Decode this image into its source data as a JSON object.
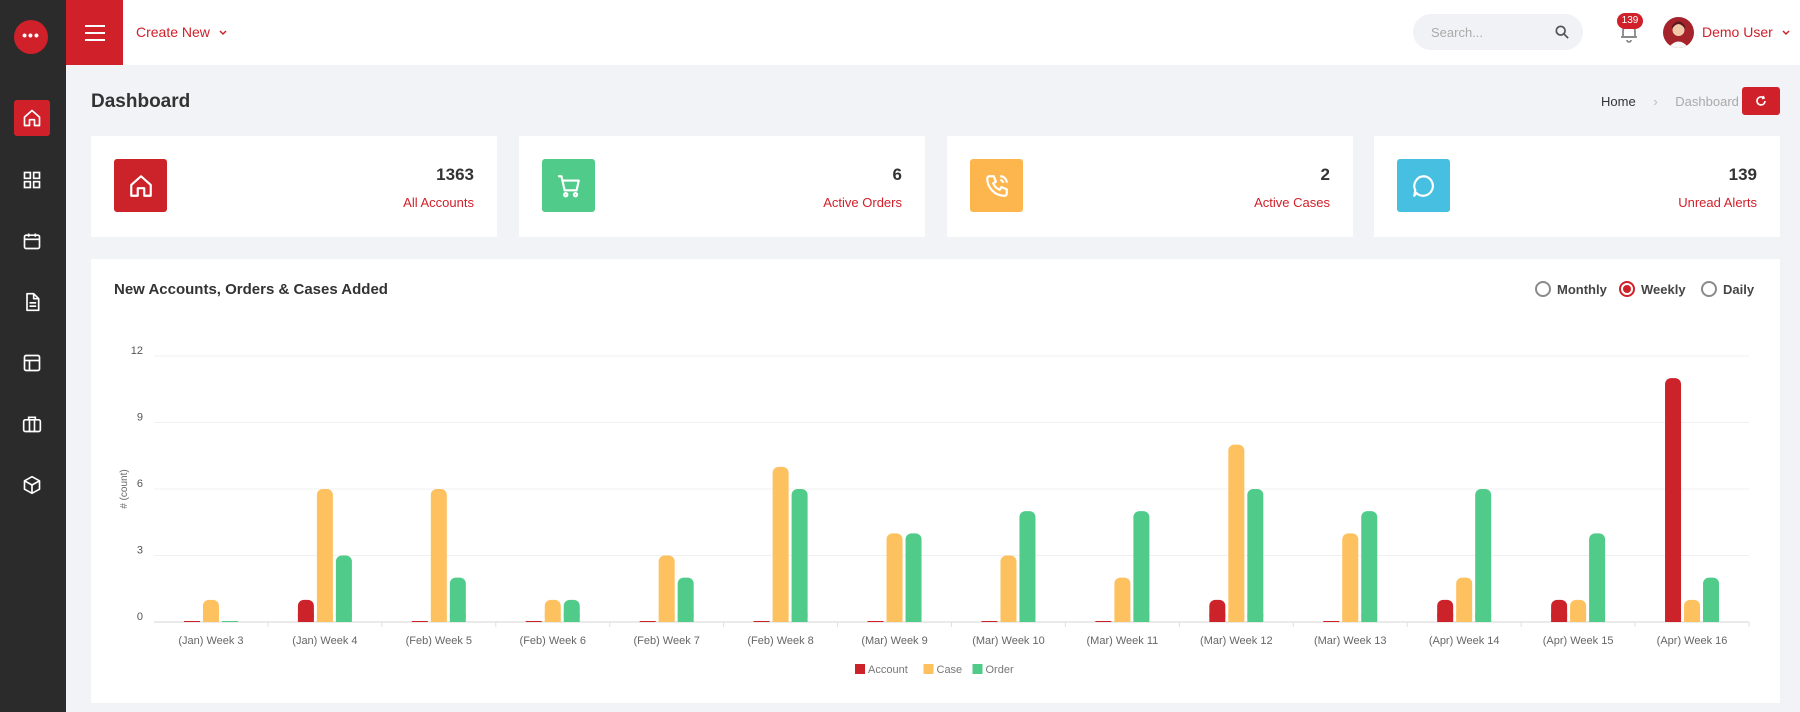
{
  "brand": {
    "dots": "•••"
  },
  "sidebar": {
    "items": [
      {
        "name": "home",
        "icon": "home-icon",
        "active": true
      },
      {
        "name": "apps",
        "icon": "grid-icon"
      },
      {
        "name": "calendar",
        "icon": "calendar-icon"
      },
      {
        "name": "documents",
        "icon": "document-icon"
      },
      {
        "name": "layout",
        "icon": "layout-icon"
      },
      {
        "name": "briefcase",
        "icon": "briefcase-icon"
      },
      {
        "name": "package",
        "icon": "box-icon"
      }
    ]
  },
  "header": {
    "create_new": "Create New",
    "search_placeholder": "Search...",
    "notification_count": "139",
    "user_name": "Demo User"
  },
  "page": {
    "title": "Dashboard",
    "breadcrumb": {
      "home": "Home",
      "current": "Dashboard"
    }
  },
  "cards": [
    {
      "value": "1363",
      "label": "All Accounts",
      "icon": "home-icon",
      "color": "#cc2229"
    },
    {
      "value": "6",
      "label": "Active Orders",
      "icon": "cart-icon",
      "color": "#50cb89"
    },
    {
      "value": "2",
      "label": "Active Cases",
      "icon": "phone-icon",
      "color": "#fdb64d"
    },
    {
      "value": "139",
      "label": "Unread Alerts",
      "icon": "chat-icon",
      "color": "#46bfe0"
    }
  ],
  "chart_panel": {
    "title": "New Accounts, Orders & Cases Added",
    "periods": [
      {
        "label": "Monthly",
        "selected": false
      },
      {
        "label": "Weekly",
        "selected": true
      },
      {
        "label": "Daily",
        "selected": false
      }
    ]
  },
  "chart_data": {
    "type": "bar",
    "title": "New Accounts, Orders & Cases Added",
    "xlabel": "",
    "ylabel": "# (count)",
    "ylim": [
      0,
      12
    ],
    "yticks": [
      0,
      3,
      6,
      9,
      12
    ],
    "categories": [
      "(Jan) Week 3",
      "(Jan) Week 4",
      "(Feb) Week 5",
      "(Feb) Week 6",
      "(Feb) Week 7",
      "(Feb) Week 8",
      "(Mar) Week 9",
      "(Mar) Week 10",
      "(Mar) Week 11",
      "(Mar) Week 12",
      "(Mar) Week 13",
      "(Apr) Week 14",
      "(Apr) Week 15",
      "(Apr) Week 16"
    ],
    "series": [
      {
        "name": "Account",
        "color": "#cc2229",
        "values": [
          0,
          1,
          0,
          0,
          0,
          0,
          0,
          0,
          0,
          1,
          0,
          1,
          1,
          11
        ]
      },
      {
        "name": "Case",
        "color": "#fdc15f",
        "values": [
          1,
          6,
          6,
          1,
          3,
          7,
          4,
          3,
          2,
          8,
          4,
          2,
          1,
          1
        ]
      },
      {
        "name": "Order",
        "color": "#50cb89",
        "values": [
          0,
          3,
          2,
          1,
          2,
          6,
          4,
          5,
          5,
          6,
          5,
          6,
          4,
          2
        ]
      }
    ],
    "legend": "bottom-center",
    "grid": true
  }
}
